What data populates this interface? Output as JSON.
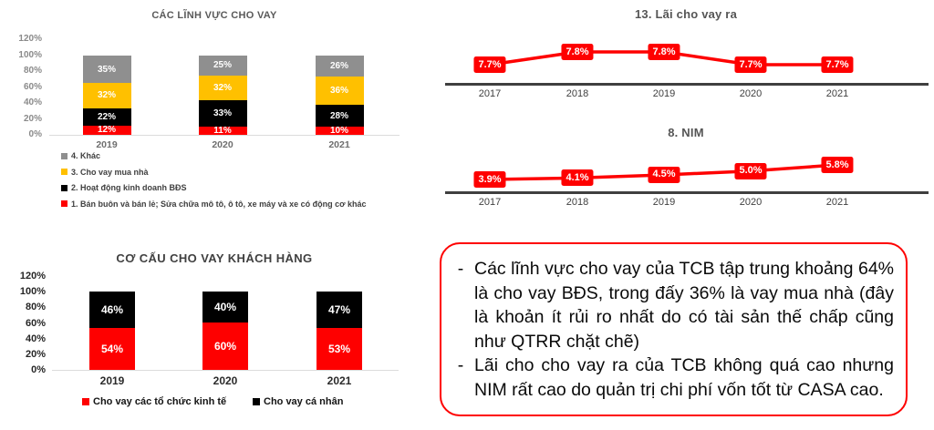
{
  "colors": {
    "red": "#fe0000",
    "yellow": "#ffc000",
    "gray": "#8f8f8f",
    "black": "#000000"
  },
  "chart_data": [
    {
      "id": "loan-sectors",
      "type": "bar",
      "stacked": true,
      "title": "CÁC LĨNH VỰC CHO VAY",
      "categories": [
        "2019",
        "2020",
        "2021"
      ],
      "y_ticks": [
        "120%",
        "100%",
        "80%",
        "60%",
        "40%",
        "20%",
        "0%"
      ],
      "ylim": [
        0,
        120
      ],
      "grid": false,
      "legend_position": "bottom-vertical",
      "series": [
        {
          "name": "1. Bán buôn và bán lẻ; Sửa chữa mô tô, ô tô, xe máy và xe có động cơ khác",
          "color": "red",
          "values": [
            12,
            11,
            10
          ]
        },
        {
          "name": "2. Hoạt động kinh doanh BĐS",
          "color": "black",
          "values": [
            22,
            33,
            28
          ]
        },
        {
          "name": "3. Cho vay mua nhà",
          "color": "yellow",
          "values": [
            32,
            32,
            36
          ]
        },
        {
          "name": "4. Khác",
          "color": "gray",
          "values": [
            35,
            25,
            26
          ]
        }
      ]
    },
    {
      "id": "customer-loan-structure",
      "type": "bar",
      "stacked": true,
      "title": "CƠ CẤU CHO VAY KHÁCH HÀNG",
      "categories": [
        "2019",
        "2020",
        "2021"
      ],
      "y_ticks": [
        "120%",
        "100%",
        "80%",
        "60%",
        "40%",
        "20%",
        "0%"
      ],
      "ylim": [
        0,
        120
      ],
      "grid": false,
      "legend_position": "bottom-horizontal",
      "series": [
        {
          "name": "Cho vay các tổ chức kinh tế",
          "color": "red",
          "values": [
            54,
            60,
            53
          ]
        },
        {
          "name": "Cho vay cá nhân",
          "color": "black",
          "values": [
            46,
            40,
            47
          ]
        }
      ]
    },
    {
      "id": "lending-rate",
      "type": "line",
      "title": "13. Lãi cho vay ra",
      "x": [
        "2017",
        "2018",
        "2019",
        "2020",
        "2021"
      ],
      "values": [
        7.7,
        7.8,
        7.8,
        7.7,
        7.7
      ],
      "labels": [
        "7.7%",
        "7.8%",
        "7.8%",
        "7.7%",
        "7.7%"
      ],
      "legend_position": "none"
    },
    {
      "id": "nim",
      "type": "line",
      "title": "8. NIM",
      "x": [
        "2017",
        "2018",
        "2019",
        "2020",
        "2021"
      ],
      "values": [
        3.9,
        4.1,
        4.5,
        5.0,
        5.8
      ],
      "labels": [
        "3.9%",
        "4.1%",
        "4.5%",
        "5.0%",
        "5.8%"
      ],
      "legend_position": "none"
    }
  ],
  "note": {
    "dash": "-",
    "bullets": [
      "Các lĩnh vực cho vay của TCB tập trung khoảng 64% là cho vay BĐS,  trong đấy 36% là vay mua nhà (đây là khoản ít rủi ro nhất do có tài sản thế chấp cũng như QTRR chặt chẽ)",
      "Lãi cho cho vay ra của TCB không quá cao nhưng NIM rất cao do quản trị chi phí vốn tốt từ CASA cao."
    ]
  }
}
